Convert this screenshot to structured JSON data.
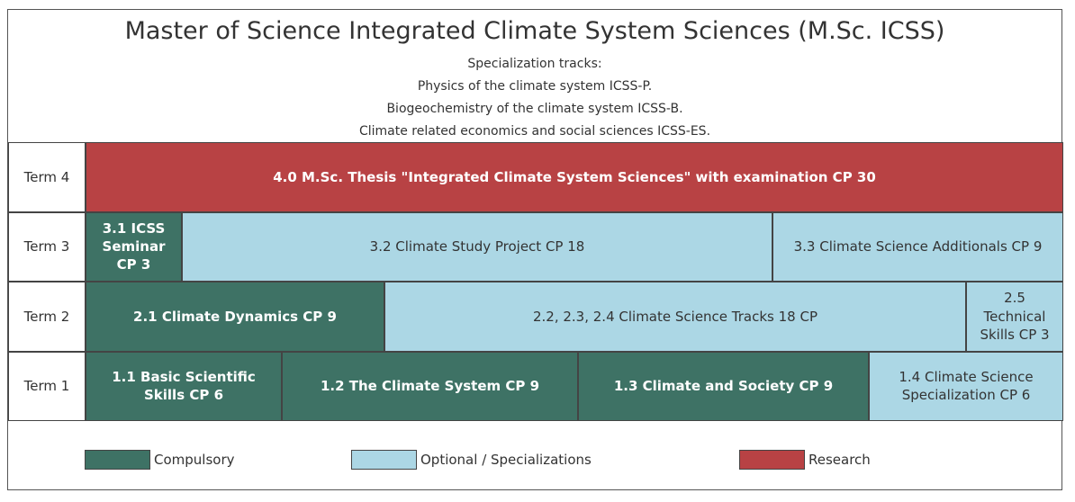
{
  "header": {
    "title": "Master of Science Integrated Climate System Sciences (M.Sc. ICSS)",
    "lines": [
      "Specialization tracks:",
      "Physics of the climate system ICSS-P.",
      "Biogeochemistry of the climate system ICSS-B.",
      "Climate related economics and social sciences ICSS-ES."
    ]
  },
  "terms": [
    {
      "label": "Term 4",
      "modules": [
        {
          "text": "4.0 M.Sc. Thesis \"Integrated Climate System Sciences\" with examination CP 30",
          "color": "#b84244"
        }
      ]
    },
    {
      "label": "Term 3",
      "modules": [
        {
          "text": "3.1 ICSS Seminar CP 3",
          "color": "#3e7265"
        },
        {
          "text": "3.2 Climate Study Project CP 18",
          "color": "#acd7e5"
        },
        {
          "text": "3.3 Climate Science Additionals CP 9",
          "color": "#acd7e5"
        }
      ]
    },
    {
      "label": "Term 2",
      "modules": [
        {
          "text": "2.1 Climate Dynamics CP 9",
          "color": "#3e7265"
        },
        {
          "text": "2.2, 2.3, 2.4 Climate Science Tracks 18 CP",
          "color": "#acd7e5"
        },
        {
          "text": "2.5 Technical Skills CP 3",
          "color": "#acd7e5"
        }
      ]
    },
    {
      "label": "Term 1",
      "modules": [
        {
          "text": "1.1 Basic Scientific Skills CP 6",
          "color": "#3e7265"
        },
        {
          "text": "1.2 The Climate System CP 9",
          "color": "#3e7265"
        },
        {
          "text": "1.3 Climate and Society CP 9",
          "color": "#3e7265"
        },
        {
          "text": "1.4 Climate Science Specialization CP 6",
          "color": "#acd7e5"
        }
      ]
    }
  ],
  "legend": [
    {
      "name": "Compulsory",
      "color": "#3e7265"
    },
    {
      "name": "Optional / Specializations",
      "color": "#acd7e5"
    },
    {
      "name": "Research",
      "color": "#b84244"
    }
  ]
}
